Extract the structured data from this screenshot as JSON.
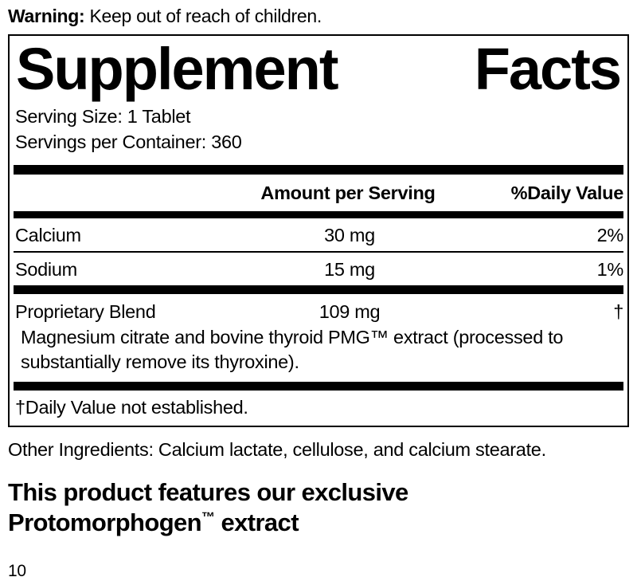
{
  "colors": {
    "text": "#000000",
    "background": "#ffffff"
  },
  "warning": {
    "label": "Warning:",
    "text": " Keep out of reach of children."
  },
  "panel": {
    "title": {
      "word1": "Supplement",
      "word2": "Facts"
    },
    "serving_size": "Serving Size: 1 Tablet",
    "servings_per_container": "Servings per Container: 360",
    "header": {
      "amount": "Amount per Serving",
      "daily_value": "%Daily Value"
    },
    "rows": [
      {
        "name": "Calcium",
        "amount": "30 mg",
        "dv": "2%"
      },
      {
        "name": "Sodium",
        "amount": "15 mg",
        "dv": "1%"
      }
    ],
    "blend": {
      "name": "Proprietary Blend",
      "amount": "109 mg",
      "dv": "†",
      "description": "Magnesium citrate and bovine thyroid PMG™ extract (processed to substantially remove its thyroxine)."
    },
    "footnote": "†Daily Value not established."
  },
  "other_ingredients": "Other Ingredients: Calcium lactate, cellulose, and calcium stearate.",
  "feature": {
    "line1": "This product features our exclusive",
    "line2_name": "Protomorphogen",
    "line2_tm": "™",
    "line2_rest": " extract"
  },
  "page_number": "10"
}
